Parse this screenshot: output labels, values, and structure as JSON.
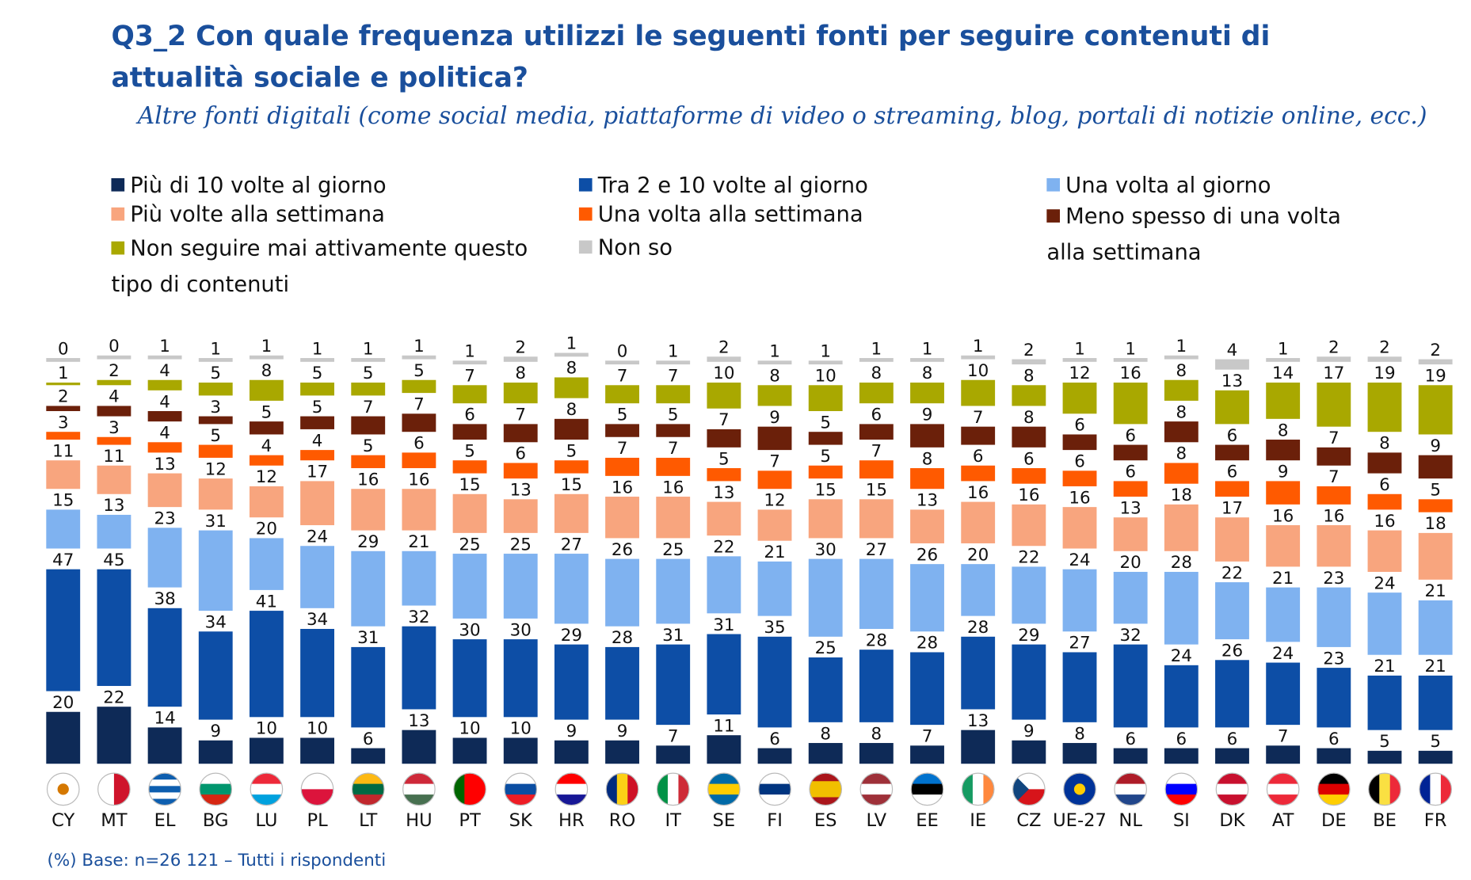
{
  "title": "Q3_2 Con quale frequenza utilizzi le seguenti fonti per seguire contenuti di attualità sociale e politica?",
  "subtitle": "Altre fonti digitali (come social media, piattaforme di video o streaming, blog, portali di notizie online, ecc.)",
  "footer": "(%) Base: n=26 121 – Tutti i rispondenti",
  "chart_data": {
    "type": "bar",
    "stacked": true,
    "ylim": [
      0,
      100
    ],
    "legend": [
      "Più di 10 volte al giorno",
      "Tra 2 e 10 volte al giorno",
      "Una volta al giorno",
      "Più volte alla settimana",
      "Una volta alla settimana",
      "Meno spesso di una volta alla settimana",
      "Non seguire mai attivamente questo tipo di contenuti",
      "Non so"
    ],
    "colors": [
      "#0e2a57",
      "#0d4ea6",
      "#7fb2f0",
      "#f8a57e",
      "#ff5a00",
      "#6b200a",
      "#a9a800",
      "#c8c8c8"
    ],
    "categories": [
      "CY",
      "MT",
      "EL",
      "BG",
      "LU",
      "PL",
      "LT",
      "HU",
      "PT",
      "SK",
      "HR",
      "RO",
      "IT",
      "SE",
      "FI",
      "ES",
      "LV",
      "EE",
      "IE",
      "CZ",
      "UE-27",
      "NL",
      "SI",
      "DK",
      "AT",
      "DE",
      "BE",
      "FR"
    ],
    "series": [
      {
        "name": "Più di 10 volte al giorno",
        "values": [
          20,
          22,
          14,
          9,
          10,
          10,
          6,
          13,
          10,
          10,
          9,
          9,
          7,
          11,
          6,
          8,
          8,
          7,
          13,
          9,
          8,
          6,
          6,
          6,
          7,
          6,
          5,
          5
        ]
      },
      {
        "name": "Tra 2 e 10 volte al giorno",
        "values": [
          47,
          45,
          38,
          34,
          41,
          34,
          31,
          32,
          30,
          30,
          29,
          28,
          31,
          31,
          35,
          25,
          28,
          28,
          28,
          29,
          27,
          32,
          24,
          26,
          24,
          23,
          21,
          21
        ]
      },
      {
        "name": "Una volta al giorno",
        "values": [
          15,
          13,
          23,
          31,
          20,
          24,
          29,
          21,
          25,
          25,
          27,
          26,
          25,
          22,
          21,
          30,
          27,
          26,
          20,
          22,
          24,
          20,
          28,
          22,
          21,
          23,
          24,
          21
        ]
      },
      {
        "name": "Più volte alla settimana",
        "values": [
          11,
          11,
          13,
          12,
          12,
          17,
          16,
          16,
          15,
          13,
          15,
          16,
          16,
          13,
          12,
          15,
          15,
          13,
          16,
          16,
          16,
          13,
          18,
          17,
          16,
          16,
          16,
          18
        ]
      },
      {
        "name": "Una volta alla settimana",
        "values": [
          3,
          3,
          4,
          5,
          4,
          4,
          5,
          6,
          5,
          6,
          5,
          7,
          7,
          5,
          7,
          5,
          7,
          8,
          6,
          6,
          6,
          6,
          8,
          6,
          9,
          7,
          6,
          5
        ]
      },
      {
        "name": "Meno spesso di una volta alla settimana",
        "values": [
          2,
          4,
          4,
          3,
          5,
          5,
          7,
          7,
          6,
          7,
          8,
          5,
          5,
          7,
          9,
          5,
          6,
          9,
          7,
          8,
          6,
          6,
          8,
          6,
          8,
          7,
          8,
          9
        ]
      },
      {
        "name": "Non seguire mai attivamente questo tipo di contenuti",
        "values": [
          1,
          2,
          4,
          5,
          8,
          5,
          5,
          5,
          7,
          8,
          8,
          7,
          7,
          10,
          8,
          10,
          8,
          8,
          10,
          8,
          12,
          16,
          8,
          13,
          14,
          17,
          19,
          19
        ]
      },
      {
        "name": "Non so",
        "values": [
          0,
          0,
          1,
          1,
          1,
          1,
          1,
          1,
          1,
          2,
          1,
          0,
          1,
          2,
          1,
          1,
          1,
          1,
          1,
          2,
          1,
          1,
          1,
          4,
          1,
          2,
          2,
          2
        ]
      }
    ]
  },
  "flags": [
    {
      "d": "v",
      "c": [
        "#ffffff",
        "#ffffff"
      ],
      "dot": "#d57800"
    },
    {
      "d": "v",
      "c": [
        "#ffffff",
        "#cf142b"
      ]
    },
    {
      "d": "h",
      "c": [
        "#0d5eaf",
        "#ffffff",
        "#0d5eaf",
        "#ffffff",
        "#0d5eaf"
      ]
    },
    {
      "d": "h",
      "c": [
        "#ffffff",
        "#00966e",
        "#d62612"
      ]
    },
    {
      "d": "h",
      "c": [
        "#ed2939",
        "#ffffff",
        "#00a1de"
      ]
    },
    {
      "d": "h",
      "c": [
        "#ffffff",
        "#dc143c"
      ]
    },
    {
      "d": "h",
      "c": [
        "#fdb913",
        "#006a44",
        "#c1272d"
      ]
    },
    {
      "d": "h",
      "c": [
        "#ce2939",
        "#ffffff",
        "#477050"
      ]
    },
    {
      "d": "v",
      "c": [
        "#006600",
        "#ff0000",
        "#ff0000"
      ]
    },
    {
      "d": "h",
      "c": [
        "#ffffff",
        "#0b4ea2",
        "#ee1c25"
      ]
    },
    {
      "d": "h",
      "c": [
        "#ff0000",
        "#ffffff",
        "#171796"
      ]
    },
    {
      "d": "v",
      "c": [
        "#002b7f",
        "#fcd116",
        "#ce1126"
      ]
    },
    {
      "d": "v",
      "c": [
        "#009246",
        "#ffffff",
        "#ce2b37"
      ]
    },
    {
      "d": "h",
      "c": [
        "#006aa7",
        "#fecc00",
        "#006aa7"
      ]
    },
    {
      "d": "h",
      "c": [
        "#ffffff",
        "#003580",
        "#ffffff"
      ]
    },
    {
      "d": "h",
      "c": [
        "#aa151b",
        "#f1bf00",
        "#f1bf00",
        "#aa151b"
      ]
    },
    {
      "d": "h",
      "c": [
        "#9e3039",
        "#ffffff",
        "#9e3039"
      ]
    },
    {
      "d": "h",
      "c": [
        "#0072ce",
        "#000000",
        "#ffffff"
      ]
    },
    {
      "d": "v",
      "c": [
        "#169b62",
        "#ffffff",
        "#ff883e"
      ]
    },
    {
      "d": "h",
      "c": [
        "#ffffff",
        "#d7141a"
      ],
      "tri": "#11457e"
    },
    {
      "d": "h",
      "c": [
        "#003399",
        "#003399"
      ],
      "dot": "#ffcc00"
    },
    {
      "d": "h",
      "c": [
        "#ae1c28",
        "#ffffff",
        "#21468b"
      ]
    },
    {
      "d": "h",
      "c": [
        "#ffffff",
        "#0000ff",
        "#ff0000"
      ]
    },
    {
      "d": "h",
      "c": [
        "#c8102e",
        "#ffffff",
        "#c8102e"
      ]
    },
    {
      "d": "h",
      "c": [
        "#ed2939",
        "#ffffff",
        "#ed2939"
      ]
    },
    {
      "d": "h",
      "c": [
        "#000000",
        "#dd0000",
        "#ffce00"
      ]
    },
    {
      "d": "v",
      "c": [
        "#000000",
        "#fae042",
        "#ed2939"
      ]
    },
    {
      "d": "v",
      "c": [
        "#002395",
        "#ffffff",
        "#ed2939"
      ]
    }
  ]
}
